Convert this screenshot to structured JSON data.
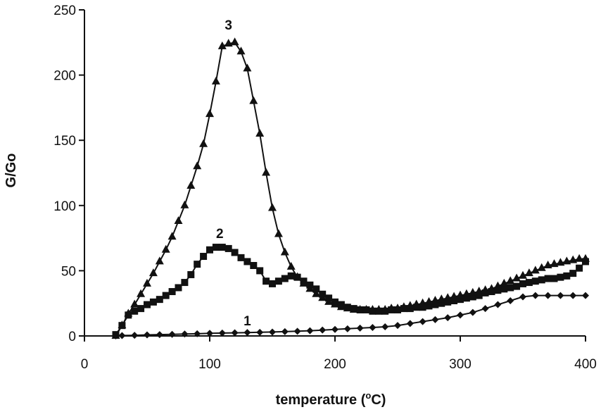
{
  "chart_data": {
    "type": "line",
    "title": "",
    "xlabel": "temperature (",
    "xlabel_sup": "o",
    "xlabel_tail": "C)",
    "ylabel": "G/Go",
    "xlim": [
      0,
      400
    ],
    "ylim": [
      0,
      250
    ],
    "xticks": [
      0,
      100,
      200,
      300,
      400
    ],
    "yticks": [
      0,
      50,
      100,
      150,
      200,
      250
    ],
    "grid": false,
    "legend": "none",
    "series": [
      {
        "name": "1",
        "marker": "diamond",
        "label_at": [
          130,
          8
        ],
        "x": [
          25,
          30,
          40,
          50,
          60,
          70,
          80,
          90,
          100,
          110,
          120,
          130,
          140,
          150,
          160,
          170,
          180,
          190,
          200,
          210,
          220,
          230,
          240,
          250,
          260,
          270,
          280,
          290,
          300,
          310,
          320,
          330,
          340,
          350,
          360,
          370,
          380,
          390,
          400
        ],
        "y": [
          0,
          0.3,
          0.5,
          0.8,
          1,
          1.2,
          1.5,
          1.7,
          2,
          2.2,
          2.4,
          2.6,
          2.8,
          3,
          3.3,
          3.6,
          4,
          4.5,
          5,
          5.5,
          6,
          6.5,
          7,
          8,
          9.5,
          11,
          12.5,
          14,
          16,
          18,
          21,
          24,
          27,
          30,
          31,
          31,
          31,
          31,
          31
        ]
      },
      {
        "name": "2",
        "marker": "square",
        "label_at": [
          108,
          75
        ],
        "x": [
          25,
          30,
          35,
          40,
          45,
          50,
          55,
          60,
          65,
          70,
          75,
          80,
          85,
          90,
          95,
          100,
          105,
          110,
          115,
          120,
          125,
          130,
          135,
          140,
          145,
          150,
          155,
          160,
          165,
          170,
          175,
          180,
          185,
          190,
          195,
          200,
          205,
          210,
          215,
          220,
          225,
          230,
          235,
          240,
          245,
          250,
          255,
          260,
          265,
          270,
          275,
          280,
          285,
          290,
          295,
          300,
          305,
          310,
          315,
          320,
          325,
          330,
          335,
          340,
          345,
          350,
          355,
          360,
          365,
          370,
          375,
          380,
          385,
          390,
          395,
          400
        ],
        "y": [
          1,
          8,
          16,
          19,
          21,
          24,
          26,
          28,
          31,
          34,
          37,
          41,
          47,
          55,
          61,
          66,
          68,
          68,
          67,
          64,
          60,
          57,
          54,
          50,
          42,
          40,
          42,
          44,
          46,
          45,
          42,
          39,
          36,
          32,
          29,
          26,
          24,
          22,
          21,
          20,
          20,
          19,
          19,
          19,
          20,
          20,
          21,
          21,
          22,
          22,
          23,
          24,
          25,
          26,
          27,
          28,
          29,
          30,
          31,
          33,
          34,
          35,
          36,
          37,
          38,
          40,
          41,
          42,
          43,
          44,
          44,
          45,
          46,
          48,
          52,
          57
        ]
      },
      {
        "name": "3",
        "marker": "triangle",
        "label_at": [
          115,
          235
        ],
        "x": [
          25,
          30,
          35,
          40,
          45,
          50,
          55,
          60,
          65,
          70,
          75,
          80,
          85,
          90,
          95,
          100,
          105,
          110,
          115,
          120,
          125,
          130,
          135,
          140,
          145,
          150,
          155,
          160,
          165,
          170,
          175,
          180,
          185,
          190,
          195,
          200,
          205,
          210,
          215,
          220,
          225,
          230,
          235,
          240,
          245,
          250,
          255,
          260,
          265,
          270,
          275,
          280,
          285,
          290,
          295,
          300,
          305,
          310,
          315,
          320,
          325,
          330,
          335,
          340,
          345,
          350,
          355,
          360,
          365,
          370,
          375,
          380,
          385,
          390,
          395,
          400
        ],
        "y": [
          0,
          8,
          17,
          24,
          32,
          40,
          48,
          57,
          66,
          76,
          88,
          100,
          115,
          130,
          147,
          170,
          195,
          222,
          224,
          225,
          218,
          205,
          180,
          155,
          125,
          98,
          78,
          64,
          53,
          45,
          40,
          36,
          32,
          29,
          26,
          24,
          22,
          21,
          20,
          20,
          20,
          20,
          20,
          20,
          21,
          21,
          22,
          23,
          24,
          25,
          26,
          27,
          28,
          29,
          30,
          31,
          32,
          33,
          34,
          35,
          36,
          38,
          40,
          42,
          44,
          46,
          48,
          50,
          52,
          54,
          55,
          56,
          57,
          58,
          59,
          59
        ]
      }
    ]
  }
}
